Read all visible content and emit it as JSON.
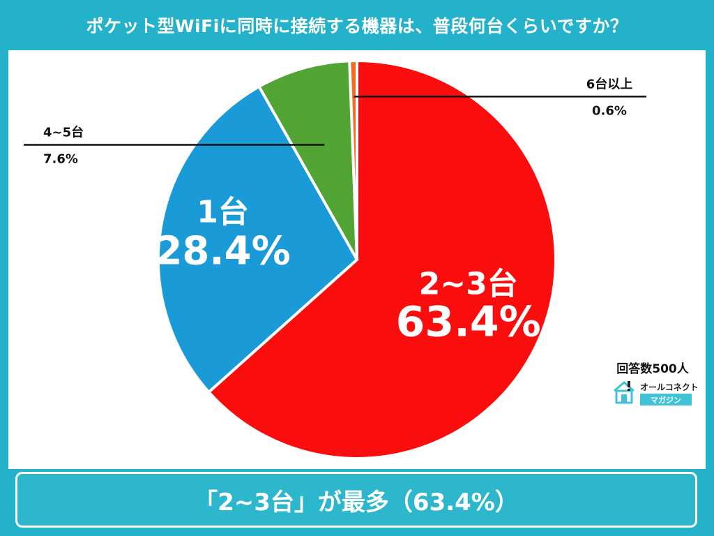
{
  "header": {
    "title": "ポケット型WiFiに同時に接続する機器は、普段何台くらいですか？"
  },
  "chart_data": {
    "type": "pie",
    "slices": [
      {
        "label": "2~3台",
        "value": 63.4,
        "value_label": "63.4%",
        "color": "#fa0d0d"
      },
      {
        "label": "1台",
        "value": 28.4,
        "value_label": "28.4%",
        "color": "#1a9ad6"
      },
      {
        "label": "4~5台",
        "value": 7.6,
        "value_label": "7.6%",
        "color": "#52a535"
      },
      {
        "label": "6台以上",
        "value": 0.6,
        "value_label": "0.6%",
        "color": "#f06d22"
      }
    ],
    "legend": "none"
  },
  "respondents": "回答数500人",
  "brand": {
    "name": "オールコネクト",
    "sub": "マガジン",
    "accent": "#41c3d7"
  },
  "conclusion": "「2~3台」が最多（63.4%）"
}
